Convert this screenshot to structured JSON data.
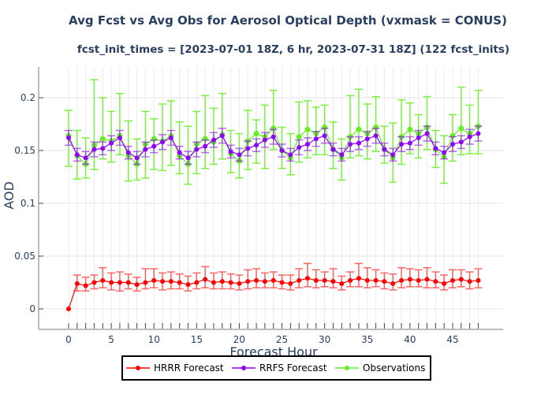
{
  "chart_data": {
    "type": "line",
    "title": "Avg Fcst vs Avg Obs for Aerosol Optical Depth (vxmask = CONUS)",
    "subtitle": "fcst_init_times = [2023-07-01 18Z, 6 hr, 2023-07-31 18Z] (122 fcst_inits)",
    "xlabel": "Forecast Hour",
    "ylabel": "AOD",
    "xlim": [
      -3.5,
      51.5
    ],
    "ylim": [
      -0.019,
      0.229
    ],
    "x_ticks": [
      0,
      5,
      10,
      15,
      20,
      25,
      30,
      35,
      40,
      45
    ],
    "x_tick_labels": [
      "0",
      "5",
      "10",
      "15",
      "20",
      "25",
      "30",
      "35",
      "40",
      "45"
    ],
    "y_ticks": [
      0,
      0.05,
      0.1,
      0.15,
      0.2
    ],
    "y_tick_labels": [
      "0",
      "0.05",
      "0.1",
      "0.15",
      "0.2"
    ],
    "grid": true,
    "legend_position": "bottom-center",
    "x": [
      0,
      1,
      2,
      3,
      4,
      5,
      6,
      7,
      8,
      9,
      10,
      11,
      12,
      13,
      14,
      15,
      16,
      17,
      18,
      19,
      20,
      21,
      22,
      23,
      24,
      25,
      26,
      27,
      28,
      29,
      30,
      31,
      32,
      33,
      34,
      35,
      36,
      37,
      38,
      39,
      40,
      41,
      42,
      43,
      44,
      45,
      46,
      47,
      48
    ],
    "series": [
      {
        "name": "HRRR Forecast",
        "color": "#ff0000",
        "values": [
          0.0,
          0.024,
          0.022,
          0.025,
          0.027,
          0.025,
          0.025,
          0.025,
          0.023,
          0.025,
          0.027,
          0.026,
          0.026,
          0.025,
          0.023,
          0.025,
          0.028,
          0.025,
          0.026,
          0.025,
          0.024,
          0.026,
          0.027,
          0.026,
          0.027,
          0.025,
          0.024,
          0.027,
          0.029,
          0.027,
          0.027,
          0.026,
          0.024,
          0.027,
          0.029,
          0.027,
          0.027,
          0.026,
          0.024,
          0.027,
          0.028,
          0.027,
          0.028,
          0.026,
          0.024,
          0.027,
          0.028,
          0.026,
          0.027
        ],
        "err_low": [
          0.0,
          0.007,
          0.005,
          0.006,
          0.007,
          0.007,
          0.008,
          0.006,
          0.006,
          0.006,
          0.007,
          0.008,
          0.007,
          0.006,
          0.006,
          0.006,
          0.008,
          0.006,
          0.007,
          0.006,
          0.006,
          0.007,
          0.007,
          0.006,
          0.007,
          0.006,
          0.006,
          0.007,
          0.008,
          0.007,
          0.006,
          0.006,
          0.006,
          0.006,
          0.008,
          0.007,
          0.006,
          0.007,
          0.006,
          0.007,
          0.007,
          0.006,
          0.008,
          0.006,
          0.006,
          0.007,
          0.007,
          0.007,
          0.007
        ],
        "err_high": [
          0.0,
          0.008,
          0.008,
          0.007,
          0.012,
          0.009,
          0.01,
          0.008,
          0.007,
          0.013,
          0.011,
          0.008,
          0.009,
          0.008,
          0.008,
          0.009,
          0.012,
          0.009,
          0.009,
          0.008,
          0.008,
          0.011,
          0.011,
          0.008,
          0.008,
          0.007,
          0.008,
          0.011,
          0.014,
          0.01,
          0.008,
          0.012,
          0.007,
          0.008,
          0.014,
          0.012,
          0.01,
          0.008,
          0.009,
          0.012,
          0.01,
          0.01,
          0.011,
          0.009,
          0.008,
          0.01,
          0.009,
          0.009,
          0.011
        ]
      },
      {
        "name": "RRFS Forecast",
        "color": "#8f00ff",
        "values": [
          0.162,
          0.146,
          0.143,
          0.151,
          0.152,
          0.157,
          0.162,
          0.148,
          0.143,
          0.151,
          0.154,
          0.158,
          0.162,
          0.148,
          0.143,
          0.151,
          0.154,
          0.16,
          0.164,
          0.149,
          0.146,
          0.152,
          0.155,
          0.16,
          0.163,
          0.15,
          0.146,
          0.153,
          0.156,
          0.161,
          0.164,
          0.151,
          0.146,
          0.156,
          0.157,
          0.161,
          0.164,
          0.151,
          0.146,
          0.156,
          0.157,
          0.162,
          0.166,
          0.152,
          0.148,
          0.156,
          0.158,
          0.163,
          0.166
        ],
        "err_low": [
          0.007,
          0.006,
          0.006,
          0.007,
          0.006,
          0.007,
          0.007,
          0.006,
          0.006,
          0.007,
          0.006,
          0.007,
          0.007,
          0.006,
          0.006,
          0.007,
          0.006,
          0.007,
          0.007,
          0.006,
          0.006,
          0.007,
          0.006,
          0.007,
          0.007,
          0.006,
          0.006,
          0.007,
          0.006,
          0.007,
          0.007,
          0.006,
          0.006,
          0.007,
          0.006,
          0.007,
          0.007,
          0.006,
          0.006,
          0.007,
          0.006,
          0.007,
          0.007,
          0.006,
          0.006,
          0.007,
          0.006,
          0.007,
          0.007
        ],
        "err_high": [
          0.007,
          0.006,
          0.006,
          0.007,
          0.006,
          0.007,
          0.007,
          0.006,
          0.006,
          0.007,
          0.006,
          0.007,
          0.007,
          0.006,
          0.006,
          0.007,
          0.006,
          0.007,
          0.007,
          0.006,
          0.006,
          0.007,
          0.006,
          0.007,
          0.007,
          0.006,
          0.006,
          0.007,
          0.006,
          0.007,
          0.007,
          0.006,
          0.006,
          0.007,
          0.006,
          0.007,
          0.007,
          0.006,
          0.006,
          0.007,
          0.006,
          0.007,
          0.007,
          0.006,
          0.006,
          0.007,
          0.006,
          0.007,
          0.007
        ]
      },
      {
        "name": "Observations",
        "color": "#66ee22",
        "values": [
          0.164,
          0.145,
          0.137,
          0.155,
          0.161,
          0.159,
          0.164,
          0.145,
          0.137,
          0.156,
          0.161,
          0.159,
          0.164,
          0.145,
          0.137,
          0.156,
          0.161,
          0.158,
          0.165,
          0.147,
          0.14,
          0.159,
          0.166,
          0.163,
          0.171,
          0.15,
          0.143,
          0.163,
          0.17,
          0.166,
          0.172,
          0.151,
          0.143,
          0.163,
          0.17,
          0.166,
          0.172,
          0.151,
          0.143,
          0.163,
          0.17,
          0.166,
          0.172,
          0.151,
          0.144,
          0.164,
          0.171,
          0.166,
          0.173
        ],
        "low": [
          0.135,
          0.123,
          0.124,
          0.132,
          0.142,
          0.139,
          0.146,
          0.121,
          0.122,
          0.124,
          0.132,
          0.131,
          0.136,
          0.128,
          0.118,
          0.128,
          0.133,
          0.137,
          0.142,
          0.129,
          0.124,
          0.132,
          0.138,
          0.133,
          0.151,
          0.133,
          0.127,
          0.139,
          0.143,
          0.146,
          0.146,
          0.133,
          0.122,
          0.143,
          0.145,
          0.142,
          0.149,
          0.138,
          0.12,
          0.137,
          0.147,
          0.143,
          0.151,
          0.134,
          0.119,
          0.14,
          0.146,
          0.147,
          0.147
        ],
        "high": [
          0.188,
          0.169,
          0.162,
          0.217,
          0.2,
          0.187,
          0.204,
          0.178,
          0.161,
          0.187,
          0.18,
          0.194,
          0.197,
          0.177,
          0.173,
          0.187,
          0.202,
          0.19,
          0.204,
          0.169,
          0.166,
          0.188,
          0.179,
          0.193,
          0.207,
          0.172,
          0.166,
          0.196,
          0.197,
          0.191,
          0.193,
          0.177,
          0.161,
          0.202,
          0.208,
          0.194,
          0.201,
          0.173,
          0.176,
          0.198,
          0.195,
          0.184,
          0.201,
          0.169,
          0.164,
          0.184,
          0.21,
          0.193,
          0.207
        ]
      }
    ]
  }
}
